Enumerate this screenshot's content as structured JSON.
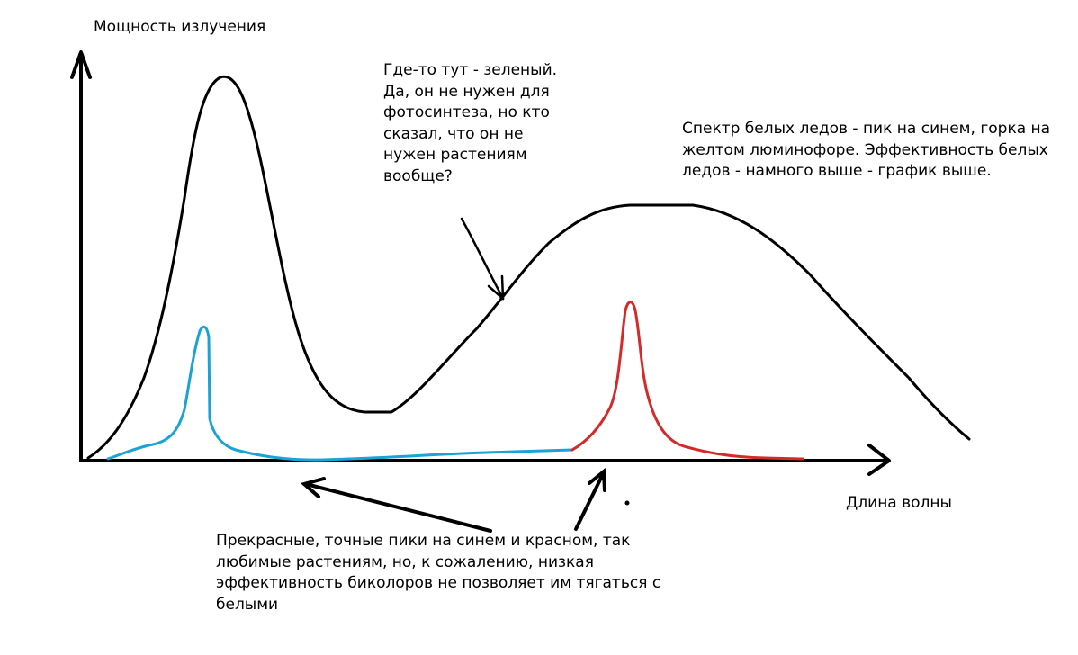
{
  "labels": {
    "y_axis": "Мощность излучения",
    "x_axis": "Длина волны"
  },
  "annotations": {
    "green": "Где-то тут - зеленый.\nДа, он не нужен для\nфотосинтеза, но кто\nсказал, что он не\nнужен растениям\nвообще?",
    "white_led": "Спектр белых ледов - пик на синем, горка на\nжелтом люминофоре. Эффективность белых\nледов - намного выше - график выше.",
    "bicolor": "Прекрасные, точные пики на синем и красном, так\nлюбимые растениям, но, к сожалению, низкая\nэффективность биколоров не позволяет им тягаться с\nбелыми"
  },
  "colors": {
    "axes": "#000000",
    "white_led_curve": "#000000",
    "blue_curve": "#1aa3d4",
    "red_curve": "#d42a2a"
  }
}
